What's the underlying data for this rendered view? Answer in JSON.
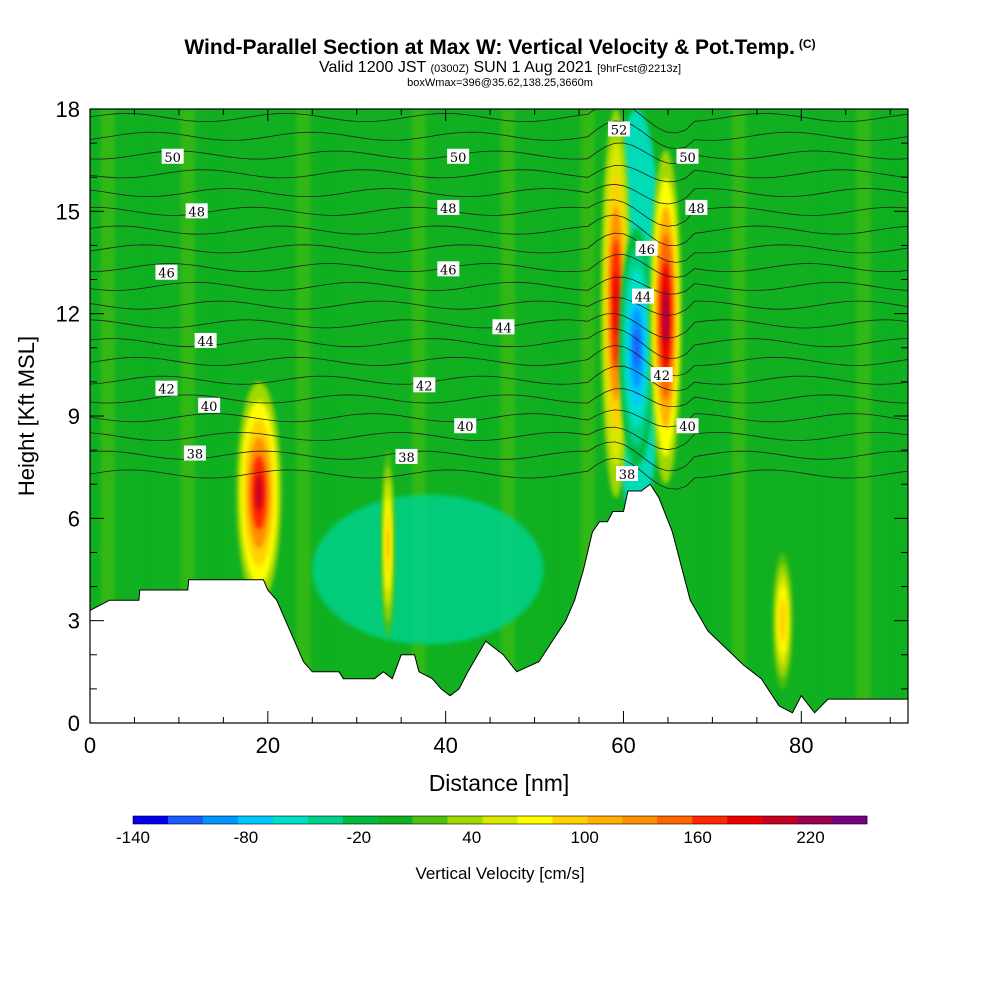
{
  "header": {
    "title": "Wind-Parallel Section at Max W: Vertical Velocity & Pot.Temp.",
    "title_mark": "(C)",
    "valid_prefix": "Valid 1200 JST",
    "valid_utc": "(0300Z)",
    "valid_date": "SUN 1 Aug 2021",
    "forecast": "[9hrFcst@2213z]",
    "box": "boxWmax=396@35.62,138.25,3660m"
  },
  "chart_data": {
    "type": "heatmap",
    "xlabel": "Distance [nm]",
    "ylabel": "Height [Kft MSL]",
    "xlim": [
      0,
      92
    ],
    "ylim": [
      0,
      18
    ],
    "x_ticks": [
      0,
      20,
      40,
      60,
      80
    ],
    "y_ticks": [
      0,
      3,
      6,
      9,
      12,
      15,
      18
    ],
    "colorbar": {
      "title": "Vertical Velocity [cm/s]",
      "tick_labels": [
        "-140",
        "-80",
        "-20",
        "40",
        "100",
        "160",
        "220"
      ],
      "tick_values": [
        -140,
        -80,
        -20,
        40,
        100,
        160,
        220
      ],
      "range": [
        -140,
        250
      ],
      "colors": [
        "#0000ee",
        "#1a5cff",
        "#0096ff",
        "#00c8ff",
        "#00e0c8",
        "#00d28c",
        "#00bb3c",
        "#10b020",
        "#50c010",
        "#a0d800",
        "#d8e800",
        "#ffff00",
        "#ffd200",
        "#ffb000",
        "#ff9000",
        "#ff6400",
        "#ff2800",
        "#ee0000",
        "#c80020",
        "#a00050",
        "#780080"
      ]
    },
    "theta_contour_labels": [
      {
        "text": "52",
        "x": 59.5,
        "y": 17.4
      },
      {
        "text": "50",
        "x": 9.3,
        "y": 16.6
      },
      {
        "text": "50",
        "x": 41.4,
        "y": 16.6
      },
      {
        "text": "50",
        "x": 67.2,
        "y": 16.6
      },
      {
        "text": "48",
        "x": 12.0,
        "y": 15.0
      },
      {
        "text": "48",
        "x": 40.3,
        "y": 15.1
      },
      {
        "text": "48",
        "x": 68.2,
        "y": 15.1
      },
      {
        "text": "46",
        "x": 62.6,
        "y": 13.9
      },
      {
        "text": "46",
        "x": 8.6,
        "y": 13.2
      },
      {
        "text": "46",
        "x": 40.3,
        "y": 13.3
      },
      {
        "text": "44",
        "x": 62.2,
        "y": 12.5
      },
      {
        "text": "44",
        "x": 13.0,
        "y": 11.2
      },
      {
        "text": "44",
        "x": 46.5,
        "y": 11.6
      },
      {
        "text": "42",
        "x": 64.3,
        "y": 10.2
      },
      {
        "text": "42",
        "x": 8.6,
        "y": 9.8
      },
      {
        "text": "42",
        "x": 37.6,
        "y": 9.9
      },
      {
        "text": "40",
        "x": 13.4,
        "y": 9.3
      },
      {
        "text": "40",
        "x": 42.2,
        "y": 8.7
      },
      {
        "text": "40",
        "x": 67.2,
        "y": 8.7
      },
      {
        "text": "38",
        "x": 11.8,
        "y": 7.9
      },
      {
        "text": "38",
        "x": 35.6,
        "y": 7.8
      },
      {
        "text": "38",
        "x": 60.4,
        "y": 7.3
      }
    ],
    "velocity_regions": [
      {
        "name": "updraft-19nm",
        "x": [
          16.5,
          21.5
        ],
        "y": [
          3.5,
          10.0
        ],
        "peak": 200
      },
      {
        "name": "updraft-33nm",
        "x": [
          32.8,
          34.2
        ],
        "y": [
          2.5,
          8.0
        ],
        "peak": 110
      },
      {
        "name": "updraft-58-60nm",
        "x": [
          57.5,
          60.8
        ],
        "y": [
          6.6,
          18.0
        ],
        "peak": 190
      },
      {
        "name": "downdraft-60-63nm",
        "x": [
          59.5,
          63.5
        ],
        "y": [
          7.5,
          14.5
        ],
        "peak": -110
      },
      {
        "name": "updraft-63-66nm",
        "x": [
          63.0,
          66.5
        ],
        "y": [
          7.0,
          16.8
        ],
        "peak": 220
      },
      {
        "name": "updraft-78nm",
        "x": [
          76.8,
          79.0
        ],
        "y": [
          1.0,
          5.0
        ],
        "peak": 100
      }
    ],
    "terrain_height_kft": [
      {
        "x": 0,
        "y": 3.3
      },
      {
        "x": 2.2,
        "y": 3.6
      },
      {
        "x": 5.5,
        "y": 3.6
      },
      {
        "x": 5.6,
        "y": 3.9
      },
      {
        "x": 11,
        "y": 3.9
      },
      {
        "x": 11.1,
        "y": 4.2
      },
      {
        "x": 19.5,
        "y": 4.2
      },
      {
        "x": 20,
        "y": 3.9
      },
      {
        "x": 21,
        "y": 3.6
      },
      {
        "x": 22,
        "y": 3.0
      },
      {
        "x": 23,
        "y": 2.4
      },
      {
        "x": 24,
        "y": 1.8
      },
      {
        "x": 25,
        "y": 1.5
      },
      {
        "x": 28,
        "y": 1.5
      },
      {
        "x": 28.5,
        "y": 1.3
      },
      {
        "x": 32,
        "y": 1.3
      },
      {
        "x": 33,
        "y": 1.5
      },
      {
        "x": 34,
        "y": 1.3
      },
      {
        "x": 35,
        "y": 2.0
      },
      {
        "x": 36.5,
        "y": 2.0
      },
      {
        "x": 37,
        "y": 1.5
      },
      {
        "x": 38.5,
        "y": 1.3
      },
      {
        "x": 39.5,
        "y": 1.0
      },
      {
        "x": 40.5,
        "y": 0.8
      },
      {
        "x": 41.5,
        "y": 1.0
      },
      {
        "x": 42.5,
        "y": 1.5
      },
      {
        "x": 44.5,
        "y": 2.4
      },
      {
        "x": 46.5,
        "y": 2.0
      },
      {
        "x": 48,
        "y": 1.5
      },
      {
        "x": 50.5,
        "y": 1.8
      },
      {
        "x": 52,
        "y": 2.4
      },
      {
        "x": 53.5,
        "y": 3.0
      },
      {
        "x": 54.5,
        "y": 3.6
      },
      {
        "x": 55.5,
        "y": 4.5
      },
      {
        "x": 56.5,
        "y": 5.6
      },
      {
        "x": 57.3,
        "y": 5.9
      },
      {
        "x": 58.2,
        "y": 5.9
      },
      {
        "x": 58.8,
        "y": 6.2
      },
      {
        "x": 60.0,
        "y": 6.2
      },
      {
        "x": 60.5,
        "y": 6.8
      },
      {
        "x": 62.0,
        "y": 6.8
      },
      {
        "x": 63.0,
        "y": 7.0
      },
      {
        "x": 64.0,
        "y": 6.6
      },
      {
        "x": 65.5,
        "y": 5.6
      },
      {
        "x": 66.5,
        "y": 4.6
      },
      {
        "x": 67.5,
        "y": 3.6
      },
      {
        "x": 69.5,
        "y": 2.7
      },
      {
        "x": 71.5,
        "y": 2.2
      },
      {
        "x": 73.5,
        "y": 1.7
      },
      {
        "x": 75.5,
        "y": 1.3
      },
      {
        "x": 76.5,
        "y": 0.9
      },
      {
        "x": 77.5,
        "y": 0.5
      },
      {
        "x": 79.0,
        "y": 0.3
      },
      {
        "x": 80.0,
        "y": 0.8
      },
      {
        "x": 81.5,
        "y": 0.3
      },
      {
        "x": 83.0,
        "y": 0.7
      },
      {
        "x": 92,
        "y": 0.7
      }
    ]
  }
}
